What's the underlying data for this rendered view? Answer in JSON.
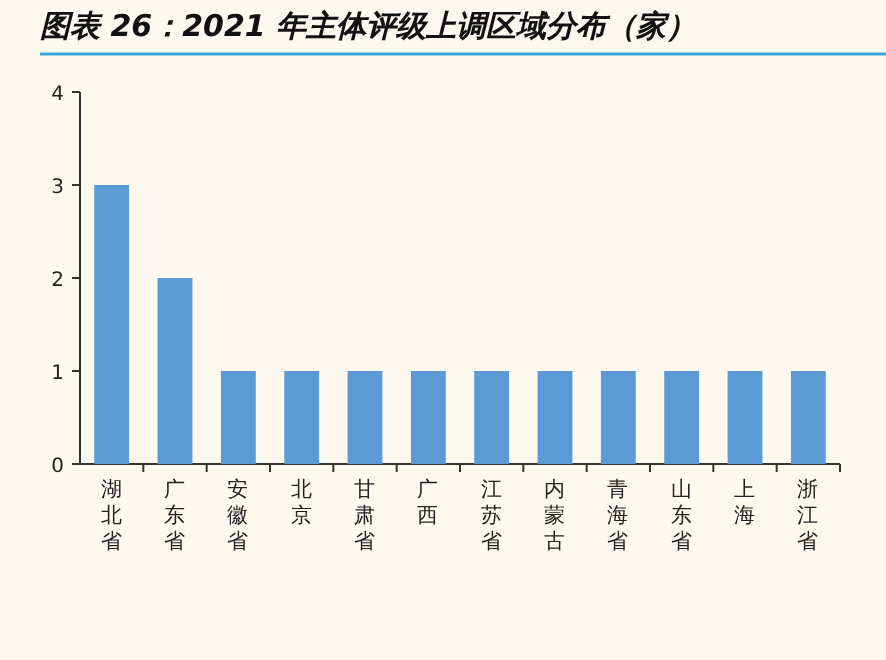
{
  "chart_data": {
    "type": "bar",
    "title": "图表 26：2021 年主体评级上调区域分布（家）",
    "categories": [
      "湖北省",
      "广东省",
      "安徽省",
      "北京",
      "甘肃省",
      "广西",
      "江苏省",
      "内蒙古",
      "青海省",
      "山东省",
      "上海",
      "浙江省"
    ],
    "values": [
      3,
      2,
      1,
      1,
      1,
      1,
      1,
      1,
      1,
      1,
      1,
      1
    ],
    "color": "#5b9bd5",
    "ylim": [
      0,
      4
    ],
    "yticks": [
      0,
      1,
      2,
      3,
      4
    ]
  }
}
